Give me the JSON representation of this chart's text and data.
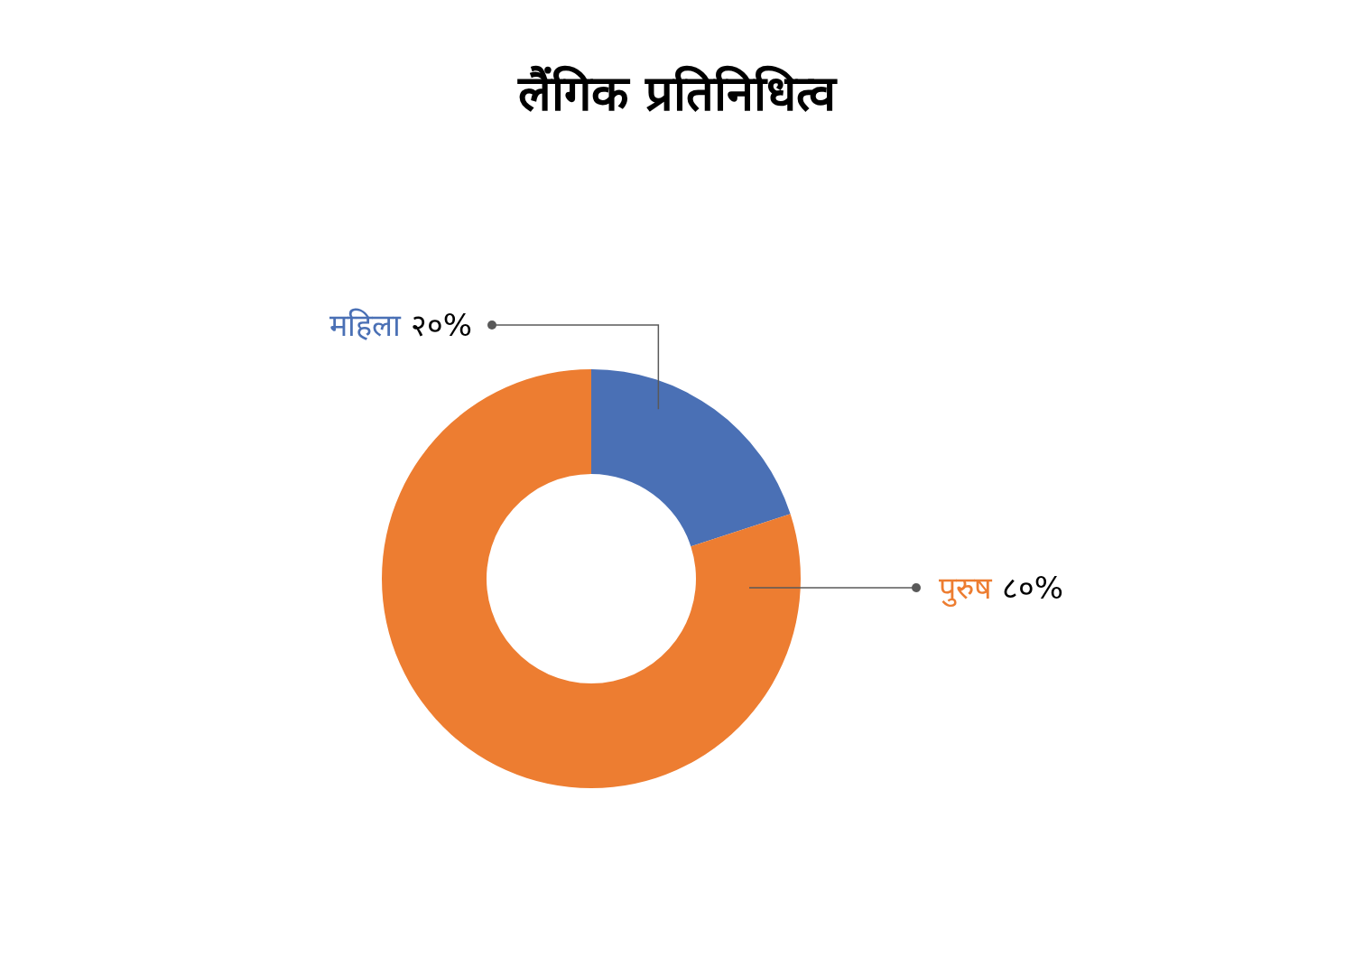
{
  "chart_data": {
    "type": "donut",
    "title": "लैंगिक प्रतिनिधित्व",
    "categories": [
      "महिला",
      "पुरुष"
    ],
    "values": [
      20,
      80
    ],
    "colors": [
      "#4a70b5",
      "#ed7d31"
    ],
    "value_labels": [
      "२०%",
      "८०%"
    ],
    "legend": false
  }
}
